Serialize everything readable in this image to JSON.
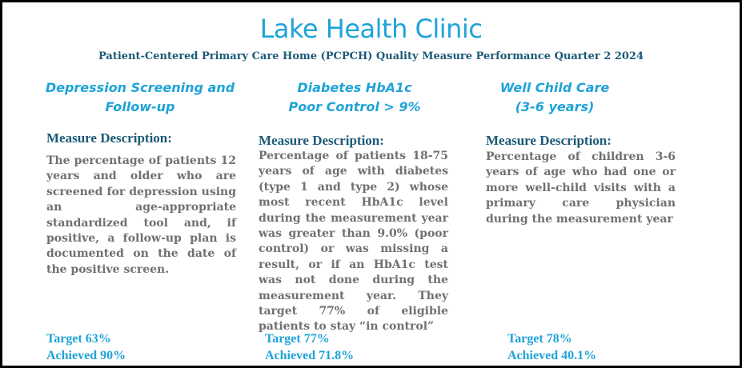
{
  "title": "Lake Health Clinic",
  "subtitle": "Patient-Centered Primary Care Home (PCPCH) Quality Measure Performance Quarter 2 2024",
  "measures": [
    {
      "heading_line1": "Depression Screening and",
      "heading_line2": "Follow-up",
      "description_label": "Measure Description:",
      "description": "The percentage of patients 12 years and older who are screened for depression using an age-appropriate standardized tool and, if positive, a follow-up plan is documented on the date of the positive screen.",
      "target": "Target 63%",
      "achieved": "Achieved 90%"
    },
    {
      "heading_line1": "Diabetes HbA1c",
      "heading_line2": "Poor Control > 9%",
      "description_label": "Measure Description:",
      "description": "Percentage of patients 18-75 years of age with diabetes (type 1 and type 2) whose most recent HbA1c level during the measurement year was greater than 9.0% (poor control) or was missing a result, or if an HbA1c test was not done during the measurement year. They target 77% of eligible patients to stay “in control”",
      "target": "Target 77%",
      "achieved": "Achieved 71.8%"
    },
    {
      "heading_line1": "Well Child Care",
      "heading_line2": "(3-6 years)",
      "description_label": "Measure Description:",
      "description": "Percentage of children 3-6 years of age who had one or more well-child visits with a primary care physician during the measurement year",
      "target": "Target 78%",
      "achieved": "Achieved 40.1%"
    }
  ]
}
